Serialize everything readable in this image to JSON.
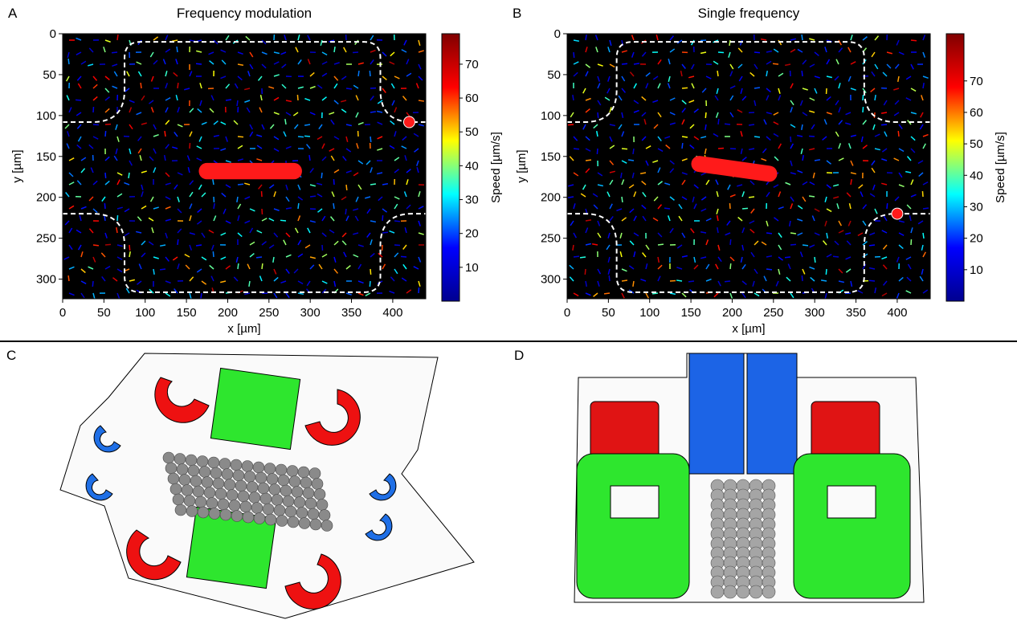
{
  "chart_data": [
    {
      "type": "quiver",
      "panel_label": "A",
      "title": "Frequency modulation",
      "xlabel": "x [µm]",
      "ylabel": "y [µm]",
      "xlim": [
        0,
        440
      ],
      "xticks": [
        0,
        50,
        100,
        150,
        200,
        250,
        300,
        350,
        400
      ],
      "ylim": [
        0,
        324
      ],
      "y_inverted": true,
      "yticks": [
        0,
        50,
        100,
        150,
        200,
        250,
        300
      ],
      "colorbar": {
        "label": "Speed [µm/s]",
        "lim": [
          0,
          79
        ],
        "ticks": [
          10,
          20,
          30,
          40,
          50,
          60,
          70
        ],
        "colormap": [
          "#00008f",
          "#0000ff",
          "#00ffff",
          "#ffff00",
          "#ff0000",
          "#800000"
        ]
      }
    },
    {
      "type": "quiver",
      "panel_label": "B",
      "title": "Single frequency",
      "xlabel": "x [µm]",
      "ylabel": "y [µm]",
      "xlim": [
        0,
        440
      ],
      "xticks": [
        0,
        50,
        100,
        150,
        200,
        250,
        300,
        350,
        400
      ],
      "ylim": [
        0,
        324
      ],
      "y_inverted": true,
      "yticks": [
        0,
        50,
        100,
        150,
        200,
        250,
        300
      ],
      "colorbar": {
        "label": "Speed [µm/s]",
        "lim": [
          0,
          85
        ],
        "ticks": [
          10,
          20,
          30,
          40,
          50,
          60,
          70
        ],
        "colormap": [
          "#00008f",
          "#0000ff",
          "#00ffff",
          "#ffff00",
          "#ff0000",
          "#800000"
        ]
      }
    }
  ],
  "illustrations": [
    {
      "panel_label": "C"
    },
    {
      "panel_label": "D"
    }
  ]
}
